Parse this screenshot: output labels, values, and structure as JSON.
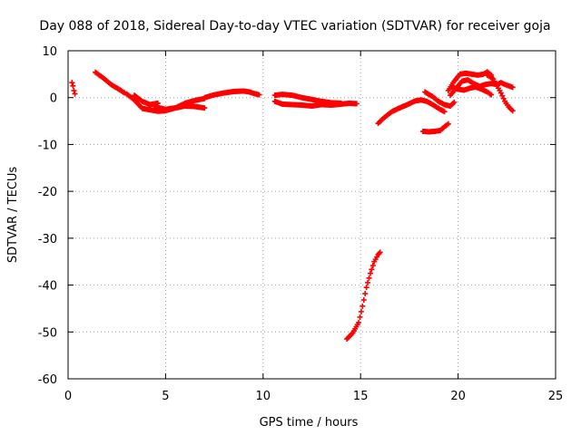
{
  "chart_data": {
    "type": "scatter",
    "title": "Day 088 of 2018, Sidereal Day-to-day VTEC variation (SDTVAR) for receiver goja",
    "xlabel": "GPS time / hours",
    "ylabel": "SDTVAR / TECUs",
    "xlim": [
      0,
      25
    ],
    "ylim": [
      -60,
      10
    ],
    "xticks": [
      0,
      5,
      10,
      15,
      20,
      25
    ],
    "yticks": [
      -60,
      -50,
      -40,
      -30,
      -20,
      -10,
      0,
      10
    ],
    "grid": true,
    "marker": "+",
    "color": "#ff0000",
    "segments": [
      [
        [
          0.2,
          3.2
        ],
        [
          0.25,
          2.5
        ],
        [
          0.3,
          1.5
        ],
        [
          0.35,
          0.8
        ]
      ],
      [
        [
          1.4,
          5.4
        ],
        [
          1.8,
          4.2
        ],
        [
          2.2,
          2.8
        ],
        [
          2.6,
          1.8
        ],
        [
          2.9,
          1.0
        ]
      ],
      [
        [
          3.0,
          0.8
        ],
        [
          3.4,
          -0.5
        ],
        [
          3.8,
          -2.3
        ],
        [
          4.2,
          -2.6
        ],
        [
          4.6,
          -2.9
        ],
        [
          5.0,
          -2.8
        ],
        [
          5.5,
          -2.2
        ],
        [
          6.0,
          -1.2
        ],
        [
          6.5,
          -0.6
        ],
        [
          7.0,
          -0.2
        ]
      ],
      [
        [
          4.5,
          -2.0
        ],
        [
          5.0,
          -2.5
        ],
        [
          5.5,
          -2.2
        ],
        [
          6.0,
          -1.8
        ],
        [
          6.5,
          -1.9
        ],
        [
          7.0,
          -2.2
        ]
      ],
      [
        [
          3.4,
          0.5
        ],
        [
          3.8,
          -0.8
        ],
        [
          4.2,
          -1.5
        ],
        [
          4.6,
          -1.2
        ]
      ],
      [
        [
          7.0,
          0.0
        ],
        [
          7.5,
          0.6
        ],
        [
          8.0,
          1.0
        ],
        [
          8.5,
          1.3
        ],
        [
          9.0,
          1.4
        ],
        [
          9.3,
          1.2
        ],
        [
          9.6,
          0.8
        ],
        [
          9.8,
          0.6
        ]
      ],
      [
        [
          10.6,
          0.5
        ],
        [
          11.0,
          0.7
        ],
        [
          11.5,
          0.5
        ],
        [
          12.0,
          0.0
        ],
        [
          12.5,
          -0.4
        ],
        [
          13.0,
          -0.8
        ],
        [
          13.5,
          -1.1
        ],
        [
          14.0,
          -1.2
        ]
      ],
      [
        [
          10.6,
          -0.8
        ],
        [
          11.0,
          -1.4
        ],
        [
          11.5,
          -1.5
        ],
        [
          12.0,
          -1.6
        ],
        [
          12.5,
          -1.8
        ],
        [
          13.0,
          -1.5
        ],
        [
          13.5,
          -1.6
        ],
        [
          14.0,
          -1.4
        ],
        [
          14.4,
          -1.2
        ],
        [
          14.8,
          -1.3
        ]
      ],
      [
        [
          14.3,
          -51.5
        ],
        [
          14.6,
          -50.2
        ],
        [
          14.9,
          -48.0
        ],
        [
          15.1,
          -44.5
        ],
        [
          15.3,
          -40.5
        ],
        [
          15.5,
          -37.5
        ],
        [
          15.7,
          -35.0
        ],
        [
          15.9,
          -33.5
        ],
        [
          16.0,
          -33.0
        ]
      ],
      [
        [
          15.9,
          -5.5
        ],
        [
          16.2,
          -4.3
        ],
        [
          16.6,
          -3.0
        ],
        [
          17.0,
          -2.2
        ],
        [
          17.4,
          -1.5
        ],
        [
          17.8,
          -0.7
        ],
        [
          18.1,
          -0.5
        ],
        [
          18.4,
          -0.8
        ],
        [
          18.7,
          -1.5
        ],
        [
          19.0,
          -2.3
        ],
        [
          19.3,
          -3.0
        ]
      ],
      [
        [
          18.3,
          1.2
        ],
        [
          18.7,
          0.2
        ],
        [
          19.0,
          -0.8
        ],
        [
          19.3,
          -1.5
        ],
        [
          19.6,
          -1.8
        ],
        [
          19.8,
          -1.0
        ]
      ],
      [
        [
          18.2,
          -7.2
        ],
        [
          18.5,
          -7.3
        ],
        [
          18.8,
          -7.2
        ],
        [
          19.1,
          -7.0
        ],
        [
          19.3,
          -6.2
        ],
        [
          19.5,
          -5.6
        ]
      ],
      [
        [
          19.5,
          1.5
        ],
        [
          19.8,
          3.5
        ],
        [
          20.1,
          5.0
        ],
        [
          20.4,
          5.2
        ],
        [
          20.7,
          5.0
        ],
        [
          21.0,
          4.8
        ],
        [
          21.3,
          5.0
        ],
        [
          21.5,
          5.5
        ],
        [
          21.7,
          4.8
        ]
      ],
      [
        [
          19.6,
          0.5
        ],
        [
          19.9,
          2.0
        ],
        [
          20.2,
          3.5
        ],
        [
          20.5,
          3.8
        ],
        [
          20.8,
          3.0
        ],
        [
          21.1,
          2.4
        ],
        [
          21.4,
          2.8
        ],
        [
          21.7,
          3.0
        ],
        [
          22.0,
          2.8
        ],
        [
          22.2,
          3.2
        ],
        [
          22.4,
          2.8
        ],
        [
          22.6,
          2.5
        ],
        [
          22.8,
          2.2
        ]
      ],
      [
        [
          19.7,
          2.2
        ],
        [
          20.0,
          1.8
        ],
        [
          20.3,
          1.6
        ],
        [
          20.6,
          2.0
        ],
        [
          20.9,
          2.3
        ],
        [
          21.2,
          1.8
        ],
        [
          21.5,
          1.2
        ],
        [
          21.7,
          0.6
        ]
      ],
      [
        [
          21.5,
          4.8
        ],
        [
          21.8,
          4.0
        ],
        [
          22.0,
          2.5
        ],
        [
          22.2,
          1.0
        ],
        [
          22.4,
          -0.8
        ],
        [
          22.6,
          -2.0
        ],
        [
          22.8,
          -2.8
        ]
      ]
    ]
  }
}
